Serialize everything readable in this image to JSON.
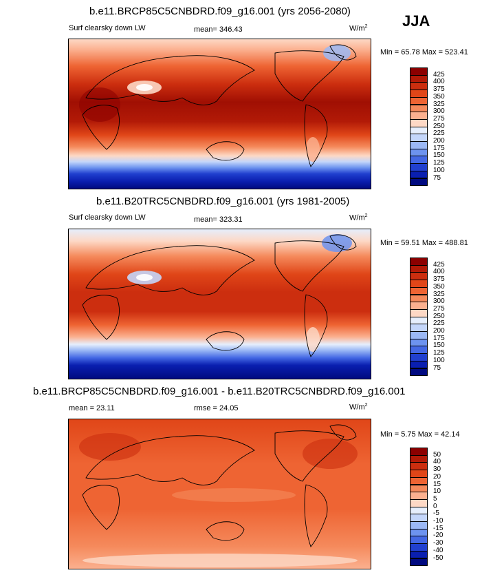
{
  "season": "JJA",
  "panels": [
    {
      "title": "b.e11.BRCP85C5CNBDRD.f09_g16.001 (yrs 2056-2080)",
      "left_label": "Surf clearsky down LW",
      "center_label": "mean= 346.43",
      "units_base": "W/m",
      "units_exp": "2",
      "minmax": "Min =  65.78 Max = 523.41",
      "colorbar_labels": [
        "425",
        "400",
        "375",
        "350",
        "325",
        "300",
        "275",
        "250",
        "225",
        "200",
        "175",
        "150",
        "125",
        "100",
        "75"
      ],
      "colorbar_colors": [
        "#8b0000",
        "#b21a07",
        "#cc2e0f",
        "#e04618",
        "#ee6433",
        "#f58a5c",
        "#fbb08f",
        "#fdd8c5",
        "#e6eefc",
        "#c4d6fa",
        "#9bb8f5",
        "#6d93ef",
        "#4468e4",
        "#2140cf",
        "#0a1fb0",
        "#000a80"
      ]
    },
    {
      "title": "b.e11.B20TRC5CNBDRD.f09_g16.001 (yrs 1981-2005)",
      "left_label": "Surf clearsky down LW",
      "center_label": "mean= 323.31",
      "units_base": "W/m",
      "units_exp": "2",
      "minmax": "Min =  59.51 Max = 488.81",
      "colorbar_labels": [
        "425",
        "400",
        "375",
        "350",
        "325",
        "300",
        "275",
        "250",
        "225",
        "200",
        "175",
        "150",
        "125",
        "100",
        "75"
      ],
      "colorbar_colors": [
        "#8b0000",
        "#b21a07",
        "#cc2e0f",
        "#e04618",
        "#ee6433",
        "#f58a5c",
        "#fbb08f",
        "#fdd8c5",
        "#e6eefc",
        "#c4d6fa",
        "#9bb8f5",
        "#6d93ef",
        "#4468e4",
        "#2140cf",
        "#0a1fb0",
        "#000a80"
      ]
    },
    {
      "title": "b.e11.BRCP85C5CNBDRD.f09_g16.001 - b.e11.B20TRC5CNBDRD.f09_g16.001",
      "left_label": "mean =  23.11",
      "center_label": "rmse =  24.05",
      "units_base": "W/m",
      "units_exp": "2",
      "minmax": "Min =   5.75 Max =  42.14",
      "colorbar_labels": [
        "50",
        "40",
        "30",
        "20",
        "15",
        "10",
        "5",
        "0",
        "-5",
        "-10",
        "-15",
        "-20",
        "-30",
        "-40",
        "-50"
      ],
      "colorbar_colors": [
        "#8b0000",
        "#b21a07",
        "#cc2e0f",
        "#e04618",
        "#ee6433",
        "#f58a5c",
        "#fbb08f",
        "#fdd8c5",
        "#e6eefc",
        "#c4d6fa",
        "#9bb8f5",
        "#6d93ef",
        "#4468e4",
        "#2140cf",
        "#0a1fb0",
        "#000a80"
      ]
    }
  ]
}
